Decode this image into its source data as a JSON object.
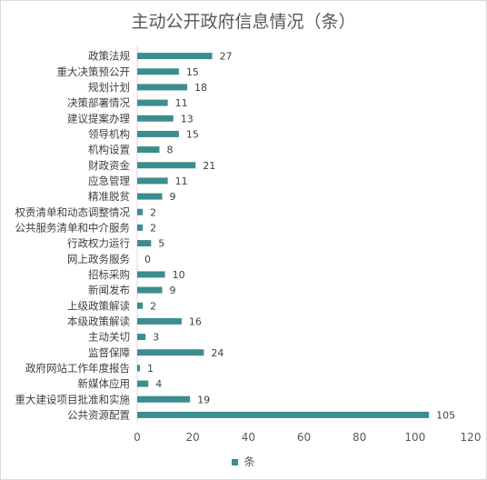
{
  "chart_data": {
    "type": "bar",
    "orientation": "horizontal",
    "title": "主动公开政府信息情况（条）",
    "categories": [
      "政策法规",
      "重大决策预公开",
      "规划计划",
      "决策部署情况",
      "建议提案办理",
      "领导机构",
      "机构设置",
      "财政资金",
      "应急管理",
      "精准脱贫",
      "权责清单和动态调整情况",
      "公共服务清单和中介服务",
      "行政权力运行",
      "网上政务服务",
      "招标采购",
      "新闻发布",
      "上级政策解读",
      "本级政策解读",
      "主动关切",
      "监督保障",
      "政府网站工作年度报告",
      "新媒体应用",
      "重大建设项目批准和实施",
      "公共资源配置"
    ],
    "series": [
      {
        "name": "条",
        "values": [
          27,
          15,
          18,
          11,
          13,
          15,
          8,
          21,
          11,
          9,
          2,
          2,
          5,
          0,
          10,
          9,
          2,
          16,
          3,
          24,
          1,
          4,
          19,
          105
        ]
      }
    ],
    "xlim": [
      0,
      120
    ],
    "xticks": [
      "0",
      "20",
      "40",
      "60",
      "80",
      "100",
      "120"
    ],
    "bar_color": "#3d8d8f",
    "legend_position": "bottom",
    "grid": false
  }
}
